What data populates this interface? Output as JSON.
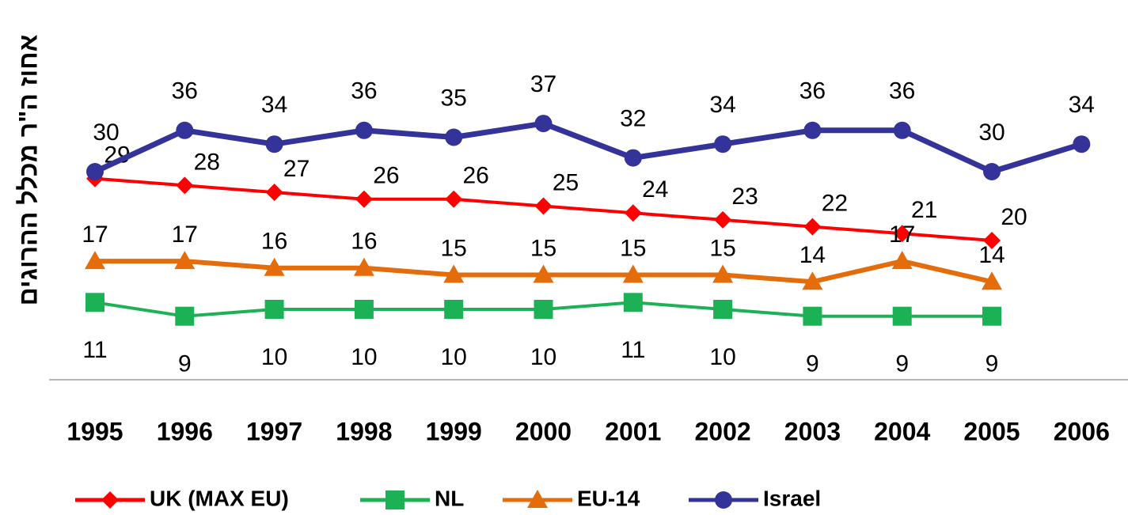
{
  "chart_data": {
    "type": "line",
    "y_label": "אחוז ה\"ר מכלל ההרוגים",
    "categories": [
      "1995",
      "1996",
      "1997",
      "1998",
      "1999",
      "2000",
      "2001",
      "2002",
      "2003",
      "2004",
      "2005",
      "2006"
    ],
    "series": [
      {
        "name": "UK (MAX EU)",
        "color": "#ff0000",
        "marker": "diamond",
        "values": [
          29,
          28,
          27,
          26,
          26,
          25,
          24,
          23,
          22,
          21,
          20,
          null
        ]
      },
      {
        "name": "NL",
        "color": "#1db155",
        "marker": "square",
        "values": [
          11,
          9,
          10,
          10,
          10,
          10,
          11,
          10,
          9,
          9,
          9,
          null
        ]
      },
      {
        "name": "EU-14",
        "color": "#e46c0a",
        "marker": "triangle",
        "values": [
          17,
          17,
          16,
          16,
          15,
          15,
          15,
          15,
          14,
          17,
          14,
          null
        ]
      },
      {
        "name": "Israel",
        "color": "#333399",
        "marker": "circle",
        "values": [
          30,
          36,
          34,
          36,
          35,
          37,
          32,
          34,
          36,
          36,
          30,
          34
        ]
      }
    ],
    "legend": "bottom"
  }
}
